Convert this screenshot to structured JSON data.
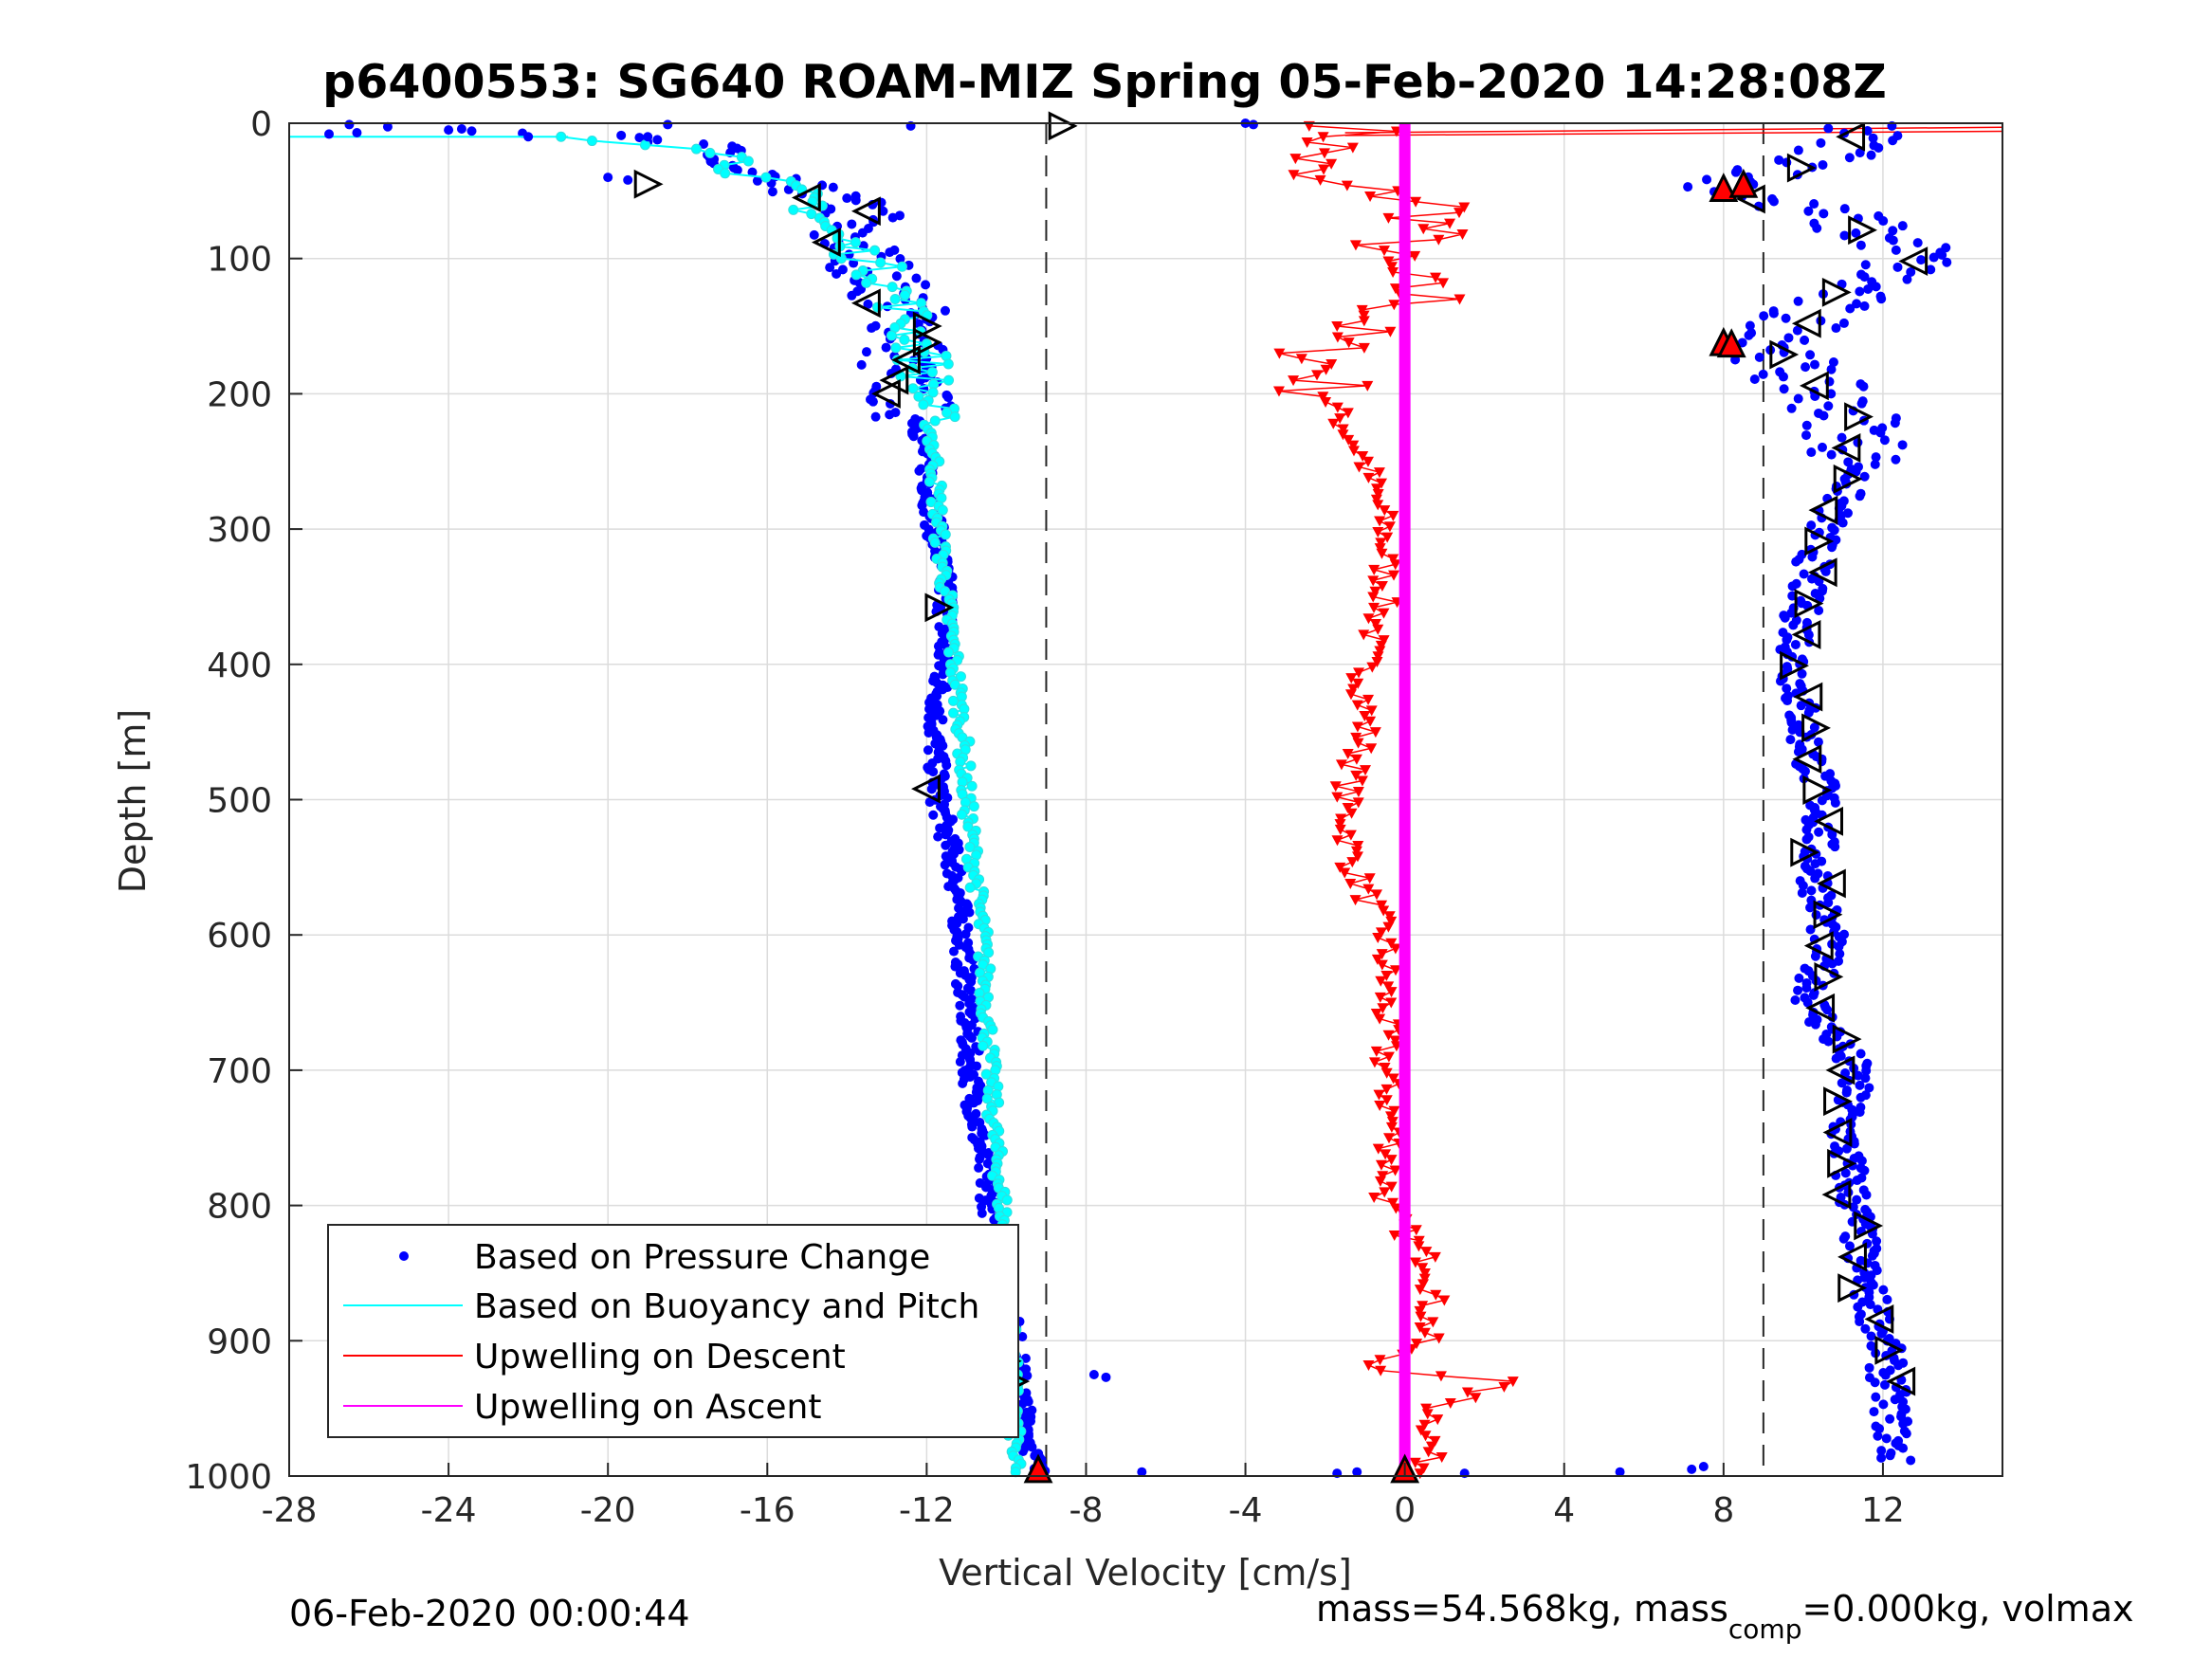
{
  "chart_data": {
    "type": "scatter",
    "title": "p6400553: SG640 ROAM-MIZ Spring 05-Feb-2020 14:28:08Z",
    "xlabel": "Vertical Velocity [cm/s]",
    "ylabel": "Depth [m]",
    "xlim": [
      -28,
      15
    ],
    "ylim": [
      0,
      1000
    ],
    "y_reversed": true,
    "grid": true,
    "xticks": [
      "-28",
      "-24",
      "-20",
      "-16",
      "-12",
      "-8",
      "-4",
      "0",
      "4",
      "8",
      "12"
    ],
    "xtick_values": [
      -28,
      -24,
      -20,
      -16,
      -12,
      -8,
      -4,
      0,
      4,
      8,
      12
    ],
    "yticks": [
      "0",
      "100",
      "200",
      "300",
      "400",
      "500",
      "600",
      "700",
      "800",
      "900",
      "1000"
    ],
    "ytick_values": [
      0,
      100,
      200,
      300,
      400,
      500,
      600,
      700,
      800,
      900,
      1000
    ],
    "reference_lines_x": [
      -9,
      9
    ],
    "legend_position": "bottom-left",
    "legend": [
      {
        "label": "Based on Pressure Change",
        "color": "#0000ff",
        "style": "dot"
      },
      {
        "label": "Based on Buoyancy and Pitch",
        "color": "#00ffff",
        "style": "line"
      },
      {
        "label": "Upwelling on Descent",
        "color": "#ff0000",
        "style": "line"
      },
      {
        "label": "Upwelling on Ascent",
        "color": "#ff00ff",
        "style": "line"
      }
    ],
    "series": [
      {
        "name": "Based on Pressure Change",
        "color": "#0000ff",
        "depth": [
          0,
          10,
          20,
          30,
          40,
          50,
          60,
          70,
          80,
          90,
          100,
          120,
          140,
          160,
          180,
          200,
          220,
          250,
          300,
          350,
          400,
          450,
          500,
          550,
          600,
          650,
          700,
          750,
          800,
          850,
          900,
          950,
          1000
        ],
        "descent_velocity": [
          -26,
          -20,
          -17,
          -17.5,
          -16.5,
          -15,
          -14,
          -13.5,
          -14.5,
          -13.8,
          -13.5,
          -13,
          -12.5,
          -12.3,
          -12.8,
          -12.5,
          -12.2,
          -12,
          -11.8,
          -11.5,
          -11.6,
          -11.8,
          -11.7,
          -11.3,
          -11.1,
          -11.0,
          -10.9,
          -10.7,
          -10.4,
          -10.1,
          -9.8,
          -9.6,
          -9.2
        ],
        "ascent_velocity": [
          11.5,
          11.3,
          11,
          10.5,
          8.5,
          8.3,
          9.5,
          11,
          11.5,
          12.5,
          12.8,
          11.5,
          10,
          9.8,
          9.5,
          10.5,
          11.3,
          11.5,
          10.5,
          10,
          9.8,
          10,
          10.5,
          10.3,
          10.6,
          10.2,
          11.3,
          11,
          11.3,
          11.5,
          12,
          12.2,
          12.3
        ]
      },
      {
        "name": "Based on Buoyancy and Pitch",
        "color": "#00ffff",
        "depth": [
          10,
          20,
          30,
          40,
          50,
          60,
          80,
          100,
          120,
          150,
          180,
          200,
          250,
          300,
          350,
          400,
          450,
          500,
          550,
          600,
          650,
          700,
          750,
          800,
          850,
          900,
          950,
          1000
        ],
        "velocity": [
          -21,
          -16.8,
          -16.7,
          -16.3,
          -15.5,
          -14.8,
          -14.5,
          -13.5,
          -12.8,
          -12.4,
          -12,
          -12,
          -11.8,
          -11.7,
          -11.5,
          -11.3,
          -11.1,
          -11.0,
          -10.8,
          -10.6,
          -10.5,
          -10.4,
          -10.3,
          -10.1,
          -10.0,
          -9.9,
          -9.8,
          -9.8
        ]
      },
      {
        "name": "Upwelling on Descent",
        "color": "#ff0000",
        "depth": [
          0,
          20,
          40,
          60,
          80,
          100,
          130,
          160,
          200,
          250,
          300,
          350,
          400,
          450,
          500,
          550,
          600,
          650,
          700,
          750,
          800,
          850,
          900,
          920,
          930,
          950,
          1000
        ],
        "velocity": [
          -1,
          -2,
          -3,
          1,
          0.5,
          -1,
          0.5,
          -2,
          -2,
          -1,
          -0.5,
          -0.5,
          -1,
          -1,
          -1.5,
          -1.3,
          -0.5,
          -0.5,
          -0.5,
          -0.3,
          -0.5,
          0.8,
          0.5,
          -1,
          2.5,
          0.8,
          0.5
        ]
      },
      {
        "name": "Upwelling on Ascent",
        "color": "#ff00ff",
        "depth": [
          0,
          1000
        ],
        "velocity": [
          0,
          0
        ]
      }
    ],
    "annotations": {
      "apogee_marker": {
        "x": -9.2,
        "y": 995
      },
      "bottom_marker": {
        "x": 0,
        "y": 995
      },
      "ascent_red_markers": [
        {
          "x": 8,
          "y": 48
        },
        {
          "x": 8.5,
          "y": 45
        },
        {
          "x": 8,
          "y": 162
        },
        {
          "x": 8.2,
          "y": 163
        }
      ]
    }
  },
  "footer": {
    "left": "06-Feb-2020 00:00:44",
    "right_part1": "mass=54.568kg, mass",
    "right_sub": "comp",
    "right_part2": "=0.000kg, volmax"
  }
}
